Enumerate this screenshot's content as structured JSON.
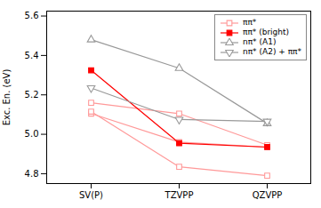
{
  "chart_data": {
    "type": "line",
    "categories": [
      "SV(P)",
      "TZVPP",
      "QZVPP"
    ],
    "series": [
      {
        "name": "ππ*",
        "color": "#ff9999",
        "marker": "square-open",
        "values": [
          5.16,
          5.105,
          4.945
        ]
      },
      {
        "name": "ππ*",
        "color": "#ff9999",
        "marker": "square-open",
        "values": [
          5.105,
          4.96,
          4.935
        ]
      },
      {
        "name": "ππ* (bright)",
        "color": "#ff0000",
        "marker": "square",
        "values": [
          5.325,
          4.955,
          4.935
        ]
      },
      {
        "name": "ππ*",
        "color": "#ff9999",
        "marker": "square-open",
        "values": [
          5.115,
          4.835,
          4.79
        ]
      },
      {
        "name": "nπ* (A1)",
        "color": "#999999",
        "marker": "triangle-up-open",
        "values": [
          5.48,
          5.335,
          5.055
        ]
      },
      {
        "name": "nπ* (A2) + ππ*",
        "color": "#999999",
        "marker": "triangle-down-open",
        "values": [
          5.235,
          5.075,
          5.065
        ]
      }
    ],
    "ylabel": "Exc. En. (eV)",
    "ylim": [
      4.75,
      5.625
    ],
    "yticks": [
      4.8,
      {
        "value": 5.0,
        "label": "5.0"
      },
      5.2,
      5.4,
      5.6
    ],
    "grid": false,
    "legend": "upper right"
  }
}
